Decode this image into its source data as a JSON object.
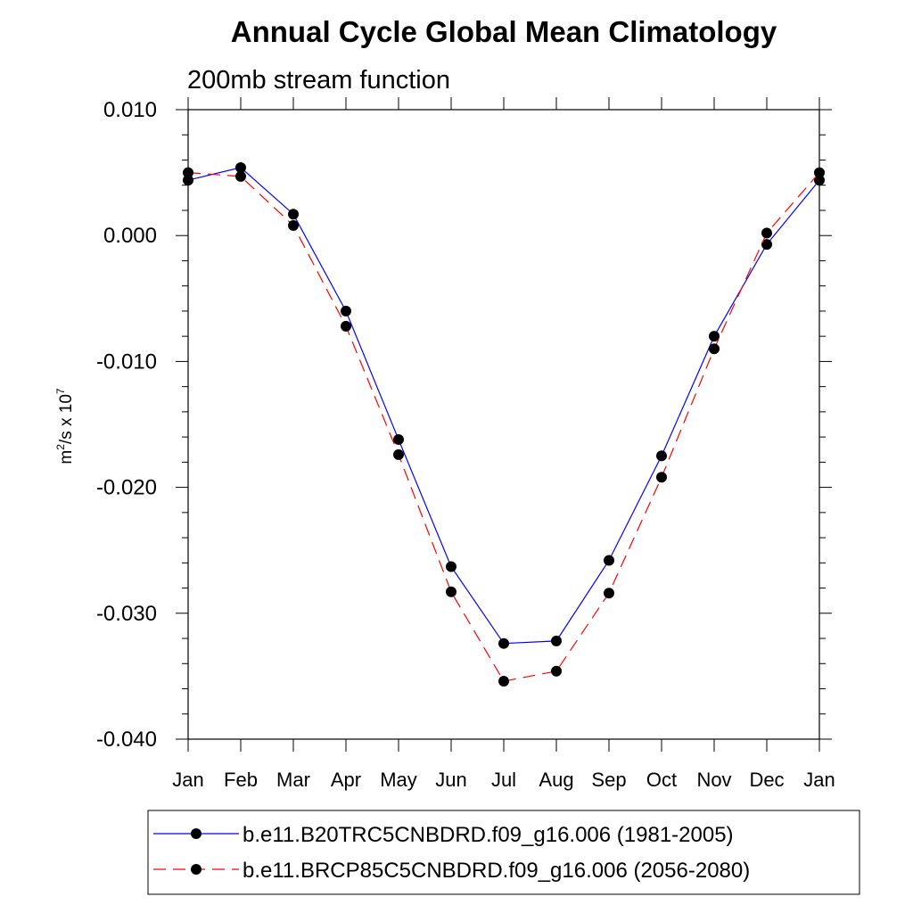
{
  "chart_data": {
    "type": "line",
    "title": "Annual Cycle Global Mean Climatology",
    "subtitle": "200mb stream function",
    "ylabel": {
      "base": "m",
      "sup1": "2",
      "mid": "/s x 10",
      "sup2": "7"
    },
    "xlabel": "",
    "categories": [
      "Jan",
      "Feb",
      "Mar",
      "Apr",
      "May",
      "Jun",
      "Jul",
      "Aug",
      "Sep",
      "Oct",
      "Nov",
      "Dec",
      "Jan"
    ],
    "ylim": [
      -0.04,
      0.01
    ],
    "yticks": [
      {
        "value": 0.01,
        "label": "0.010"
      },
      {
        "value": 0.0,
        "label": "0.000"
      },
      {
        "value": -0.01,
        "label": "-0.010"
      },
      {
        "value": -0.02,
        "label": "-0.020"
      },
      {
        "value": -0.03,
        "label": "-0.030"
      },
      {
        "value": -0.04,
        "label": "-0.040"
      }
    ],
    "grid": false,
    "legend_position": "bottom",
    "series": [
      {
        "name": "b.e11.B20TRC5CNBDRD.f09_g16.006 (1981-2005)",
        "color": "#0000ff",
        "dash": "solid",
        "values": [
          0.0044,
          0.0054,
          0.0017,
          -0.006,
          -0.0162,
          -0.0263,
          -0.0324,
          -0.0322,
          -0.0258,
          -0.0175,
          -0.008,
          -0.0007,
          0.0044
        ]
      },
      {
        "name": "b.e11.BRCP85C5CNBDRD.f09_g16.006 (2056-2080)",
        "color": "#ff0000",
        "dash": "dashed",
        "values": [
          0.005,
          0.0047,
          0.0008,
          -0.0072,
          -0.0174,
          -0.0283,
          -0.0354,
          -0.0346,
          -0.0284,
          -0.0192,
          -0.009,
          0.0002,
          0.005
        ]
      }
    ]
  }
}
